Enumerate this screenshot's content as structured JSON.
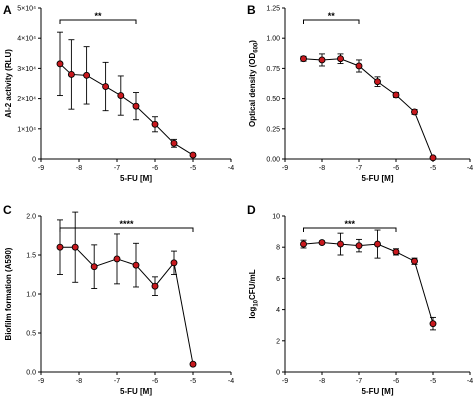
{
  "chart_data": [
    {
      "type": "line",
      "panel_label": "A",
      "xlabel": "5-FU [M]",
      "ylabel": "AI-2 activity (RLU)",
      "xlim": [
        -9,
        -4
      ],
      "ylim": [
        0,
        50000
      ],
      "x_ticks": [
        "-9",
        "-8",
        "-7",
        "-6",
        "-5",
        "-4"
      ],
      "y_ticks": [
        "0",
        "1×10⁴",
        "2×10⁴",
        "3×10⁴",
        "4×10⁴",
        "5×10⁴"
      ],
      "y_tick_values": [
        0,
        10000,
        20000,
        30000,
        40000,
        50000
      ],
      "series": [
        {
          "x": [
            -8.5,
            -8.2,
            -7.8,
            -7.3,
            -6.9,
            -6.5,
            -6.0,
            -5.5,
            -5.0
          ],
          "y": [
            31500,
            28000,
            27700,
            24000,
            21000,
            17500,
            11500,
            5200,
            1300
          ],
          "error": [
            10500,
            11500,
            9500,
            8000,
            6500,
            4500,
            2500,
            1300,
            500
          ]
        }
      ],
      "significance": {
        "label": "**",
        "x_start": -8.5,
        "x_end": -6.5
      }
    },
    {
      "type": "line",
      "panel_label": "B",
      "xlabel": "5-FU [M]",
      "ylabel_main": "Optical density (OD",
      "ylabel_sub": "600",
      "ylabel_close": ")",
      "xlim": [
        -9,
        -4
      ],
      "ylim": [
        0,
        1.25
      ],
      "x_ticks": [
        "-9",
        "-8",
        "-7",
        "-6",
        "-5",
        "-4"
      ],
      "y_ticks": [
        "0.00",
        "0.25",
        "0.50",
        "0.75",
        "1.00",
        "1.25"
      ],
      "y_tick_values": [
        0,
        0.25,
        0.5,
        0.75,
        1.0,
        1.25
      ],
      "series": [
        {
          "x": [
            -8.5,
            -8.0,
            -7.5,
            -7.0,
            -6.5,
            -6.0,
            -5.5,
            -5.0
          ],
          "y": [
            0.83,
            0.82,
            0.83,
            0.77,
            0.64,
            0.53,
            0.39,
            0.01
          ],
          "error": [
            0.02,
            0.05,
            0.04,
            0.05,
            0.04,
            0.02,
            0.02,
            0.01
          ]
        }
      ],
      "significance": {
        "label": "**",
        "x_start": -8.5,
        "x_end": -7.0
      }
    },
    {
      "type": "line",
      "panel_label": "C",
      "xlabel": "5-FU [M]",
      "ylabel": "Biofilm formation (A590)",
      "xlim": [
        -9,
        -4
      ],
      "ylim": [
        0,
        2.0
      ],
      "x_ticks": [
        "-9",
        "-8",
        "-7",
        "-6",
        "-5",
        "-4"
      ],
      "y_ticks": [
        "0.0",
        "0.5",
        "1.0",
        "1.5",
        "2.0"
      ],
      "y_tick_values": [
        0,
        0.5,
        1.0,
        1.5,
        2.0
      ],
      "series": [
        {
          "x": [
            -8.5,
            -8.1,
            -7.6,
            -7.0,
            -6.5,
            -6.0,
            -5.5,
            -5.0
          ],
          "y": [
            1.6,
            1.6,
            1.35,
            1.45,
            1.37,
            1.1,
            1.4,
            0.1
          ],
          "error": [
            0.35,
            0.45,
            0.28,
            0.32,
            0.28,
            0.12,
            0.15,
            0.02
          ]
        }
      ],
      "significance": {
        "label": "****",
        "x_start": -8.5,
        "x_end": -5.0
      }
    },
    {
      "type": "line",
      "panel_label": "D",
      "xlabel": "5-FU [M]",
      "ylabel_pre": "log",
      "ylabel_sub": "10",
      "ylabel_post": "CFU/mL",
      "xlim": [
        -9,
        -4
      ],
      "ylim": [
        0,
        10
      ],
      "x_ticks": [
        "-9",
        "-8",
        "-7",
        "-6",
        "-5",
        "-4"
      ],
      "y_ticks": [
        "0",
        "2",
        "4",
        "6",
        "8",
        "10"
      ],
      "y_tick_values": [
        0,
        2,
        4,
        6,
        8,
        10
      ],
      "series": [
        {
          "x": [
            -8.5,
            -8.0,
            -7.5,
            -7.0,
            -6.5,
            -6.0,
            -5.5,
            -5.0
          ],
          "y": [
            8.2,
            8.3,
            8.2,
            8.1,
            8.2,
            7.7,
            7.1,
            3.1
          ],
          "error": [
            0.25,
            0.1,
            0.7,
            0.4,
            0.9,
            0.2,
            0.2,
            0.4
          ]
        }
      ],
      "significance": {
        "label": "***",
        "x_start": -8.5,
        "x_end": -6.0
      }
    }
  ]
}
